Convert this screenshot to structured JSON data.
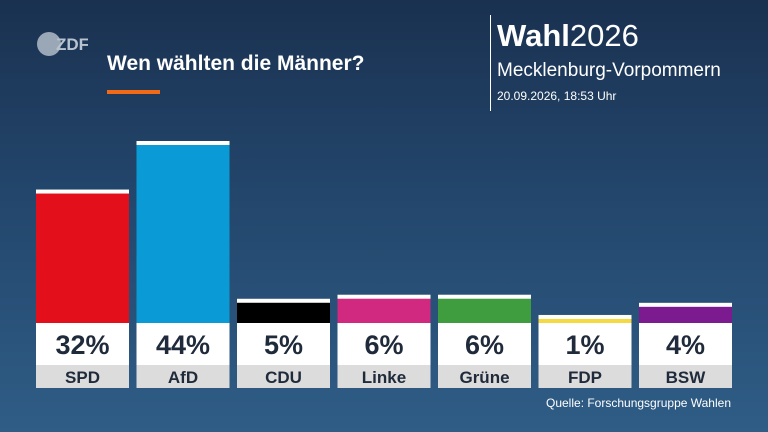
{
  "logo": {
    "text": "ZDF",
    "icon": "zdf-logo-icon"
  },
  "header": {
    "headline": "Wen wählten die Männer?",
    "brand_bold": "Wahl",
    "brand_year": "2026",
    "region": "Mecklenburg-Vorpommern",
    "timestamp": "20.09.2026, 18:53 Uhr"
  },
  "footer": {
    "source": "Quelle: Forschungsgruppe Wahlen"
  },
  "colors": {
    "accent": "#f26a16",
    "label_box": "#ffffff",
    "name_box": "#dcdcdc",
    "text_dark": "#1f2a3a"
  },
  "chart_data": {
    "type": "bar",
    "title": "Wen wählten die Männer?",
    "categories": [
      "SPD",
      "AfD",
      "CDU",
      "Linke",
      "Grüne",
      "FDP",
      "BSW"
    ],
    "values": [
      32,
      44,
      5,
      6,
      6,
      1,
      4
    ],
    "value_labels": [
      "32%",
      "44%",
      "5%",
      "6%",
      "6%",
      "1%",
      "4%"
    ],
    "colors": [
      "#e3101b",
      "#0a9bd6",
      "#000000",
      "#d12880",
      "#3f9c3f",
      "#f4d942",
      "#7c1b8f"
    ],
    "unit": "%",
    "ylim": [
      0,
      44
    ]
  }
}
